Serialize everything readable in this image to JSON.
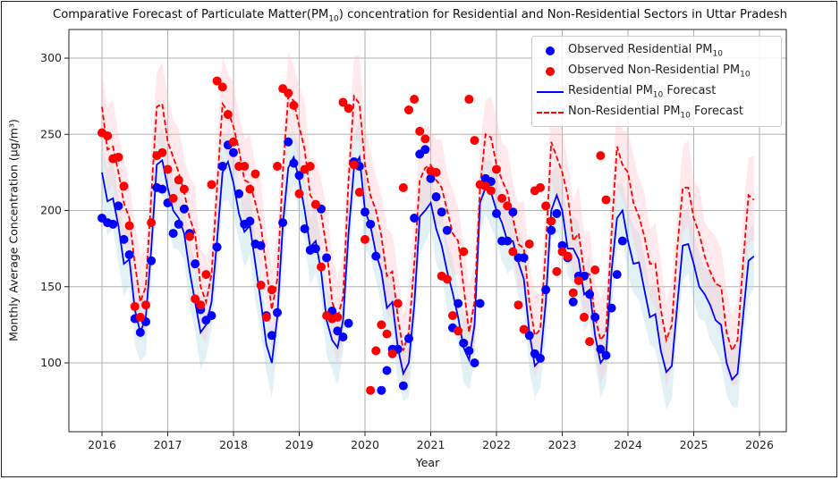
{
  "chart_data": {
    "type": "line",
    "title": "Comparative Forecast of Particulate Matter(PM10) concentration for Residential and Non-Residential Sectors in Uttar Pradesh",
    "title_parts": {
      "pre": "Comparative Forecast of Particulate Matter(PM",
      "sub": "10",
      "post": ") concentration for Residential and Non-Residential Sectors in Uttar Pradesh"
    },
    "xlabel": "Year",
    "ylabel": "Monthly Average Concentration (μg/m³)",
    "xlim": [
      2015.5,
      2026.4
    ],
    "ylim": [
      50,
      320
    ],
    "xticks": [
      2016,
      2017,
      2018,
      2019,
      2020,
      2021,
      2022,
      2023,
      2024,
      2025,
      2026
    ],
    "yticks": [
      100,
      150,
      200,
      250,
      300
    ],
    "grid": true,
    "legend_position": "top-right",
    "legend": [
      {
        "label_pre": "Observed Residential PM",
        "sub": "10",
        "label_post": "",
        "kind": "dot",
        "color": "#0000ff"
      },
      {
        "label_pre": "Observed Non-Residential PM",
        "sub": "10",
        "label_post": "",
        "kind": "dot",
        "color": "#ff0000"
      },
      {
        "label_pre": "Residential PM",
        "sub": "10",
        "label_post": " Forecast",
        "kind": "line",
        "color": "#0000ff"
      },
      {
        "label_pre": "Non-Residential PM",
        "sub": "10",
        "label_post": " Forecast",
        "kind": "dashed",
        "color": "#ff0000"
      }
    ],
    "x_start": 2016.0,
    "x_step": 0.08333,
    "series": [
      {
        "name": "Residential PM10 Forecast",
        "color": "#0000ff",
        "style": "solid",
        "band_color": "#add8e6",
        "band_width": 22,
        "values": [
          225,
          206,
          208,
          190,
          165,
          168,
          135,
          120,
          130,
          175,
          230,
          233,
          215,
          200,
          195,
          185,
          160,
          140,
          120,
          125,
          140,
          180,
          225,
          232,
          218,
          198,
          186,
          190,
          165,
          140,
          112,
          100,
          130,
          190,
          228,
          235,
          220,
          200,
          176,
          180,
          160,
          128,
          115,
          110,
          128,
          185,
          228,
          235,
          200,
          190,
          172,
          160,
          136,
          140,
          110,
          93,
          100,
          138,
          196,
          200,
          205,
          188,
          177,
          160,
          146,
          130,
          110,
          102,
          125,
          205,
          215,
          212,
          200,
          192,
          180,
          180,
          166,
          155,
          120,
          98,
          102,
          140,
          200,
          210,
          200,
          175,
          175,
          168,
          145,
          148,
          118,
          100,
          105,
          160,
          195,
          200,
          180,
          165,
          166,
          148,
          130,
          132,
          108,
          94,
          98,
          138,
          177,
          178,
          165,
          150,
          145,
          138,
          128,
          125,
          100,
          89,
          93,
          130,
          167,
          170
        ]
      },
      {
        "name": "Non-Residential PM10 Forecast",
        "color": "#ff0000",
        "style": "dashed",
        "band_color": "#ffc0cb",
        "band_width": 28,
        "values": [
          268,
          240,
          242,
          225,
          205,
          195,
          165,
          140,
          150,
          210,
          268,
          270,
          245,
          235,
          225,
          212,
          195,
          185,
          150,
          140,
          158,
          215,
          270,
          265,
          255,
          240,
          220,
          218,
          205,
          190,
          162,
          135,
          155,
          225,
          275,
          272,
          255,
          240,
          210,
          205,
          198,
          175,
          140,
          130,
          143,
          220,
          275,
          270,
          230,
          210,
          200,
          183,
          157,
          160,
          130,
          108,
          120,
          165,
          220,
          228,
          230,
          220,
          215,
          200,
          185,
          180,
          150,
          120,
          140,
          215,
          250,
          248,
          230,
          220,
          212,
          195,
          178,
          175,
          140,
          118,
          122,
          175,
          245,
          235,
          225,
          210,
          180,
          185,
          160,
          158,
          130,
          115,
          120,
          185,
          242,
          230,
          225,
          205,
          196,
          183,
          165,
          165,
          135,
          115,
          125,
          175,
          215,
          215,
          195,
          185,
          170,
          160,
          152,
          150,
          120,
          108,
          115,
          165,
          210,
          207
        ]
      },
      {
        "name": "Observed Residential PM10",
        "color": "#0000ff",
        "style": "points",
        "values": [
          195,
          192,
          191,
          203,
          181,
          171,
          129,
          120,
          127,
          167,
          215,
          214,
          205,
          185,
          191,
          201,
          185,
          165,
          135,
          128,
          131,
          176,
          229,
          243,
          238,
          211,
          191,
          193,
          178,
          177,
          131,
          118,
          133,
          192,
          245,
          231,
          223,
          188,
          174,
          175,
          201,
          169,
          134,
          121,
          117,
          126,
          232,
          229,
          199,
          191,
          170,
          82,
          95,
          109,
          109,
          85,
          116,
          195,
          237,
          240,
          221,
          209,
          199,
          187,
          123,
          139,
          113,
          108,
          100,
          139,
          221,
          219,
          198,
          180,
          180,
          199,
          169,
          169,
          118,
          106,
          103,
          148,
          187,
          198,
          177,
          169,
          140,
          157,
          157,
          145,
          130,
          109,
          105,
          136,
          158,
          180
        ]
      },
      {
        "name": "Observed Non-Residential PM10",
        "color": "#ff0000",
        "style": "points",
        "values": [
          251,
          249,
          234,
          235,
          216,
          190,
          137,
          130,
          138,
          192,
          236,
          238,
          227,
          208,
          220,
          214,
          183,
          142,
          138,
          158,
          217,
          285,
          281,
          263,
          245,
          229,
          229,
          214,
          224,
          151,
          130,
          148,
          229,
          280,
          277,
          269,
          211,
          227,
          229,
          204,
          163,
          131,
          129,
          130,
          271,
          267,
          230,
          212,
          181,
          82,
          108,
          125,
          119,
          106,
          139,
          215,
          266,
          273,
          252,
          247,
          226,
          225,
          157,
          155,
          131,
          121,
          173,
          273,
          246,
          217,
          216,
          213,
          227,
          208,
          203,
          173,
          138,
          122,
          178,
          213,
          215,
          203,
          193,
          160,
          173,
          170,
          146,
          154,
          130,
          114,
          161,
          236,
          207
        ]
      }
    ]
  }
}
